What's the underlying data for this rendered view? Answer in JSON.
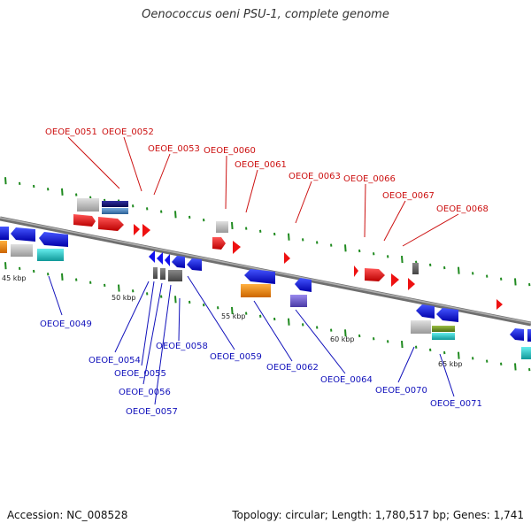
{
  "title": "Oenococcus oeni PSU-1, complete genome",
  "footer": {
    "accession": "Accession: NC_008528",
    "topology": "Topology: circular; Length: 1,780,517 bp; Genes: 1,741"
  },
  "scale_labels": [
    "45 kbp",
    "50 kbp",
    "55 kbp",
    "60 kbp",
    "65 kbp"
  ],
  "forward_genes": [
    "OEOE_0051",
    "OEOE_0052",
    "OEOE_0053",
    "OEOE_0060",
    "OEOE_0061",
    "OEOE_0063",
    "OEOE_0066",
    "OEOE_0067",
    "OEOE_0068"
  ],
  "reverse_genes": [
    "OEOE_0049",
    "OEOE_0054",
    "OEOE_0055",
    "OEOE_0056",
    "OEOE_0057",
    "OEOE_0058",
    "OEOE_0059",
    "OEOE_0062",
    "OEOE_0064",
    "OEOE_0070",
    "OEOE_0071"
  ],
  "colors": {
    "backbone": "#8a8a8a",
    "tick": "#1f8a1f",
    "forward_label": "#cc1111",
    "reverse_label": "#1111bb",
    "red_gene": "#ee1111",
    "blue_gene": "#1111ee",
    "navy_gene": "#101080",
    "steel_gene": "#4a7fb5",
    "grey_gene": "#bbbbbb",
    "dark_grey_gene": "#666666",
    "cyan_gene": "#22cccc",
    "orange_gene": "#ff8c00",
    "purple_gene": "#6a5acd",
    "olive_gene": "#6b8e23"
  }
}
